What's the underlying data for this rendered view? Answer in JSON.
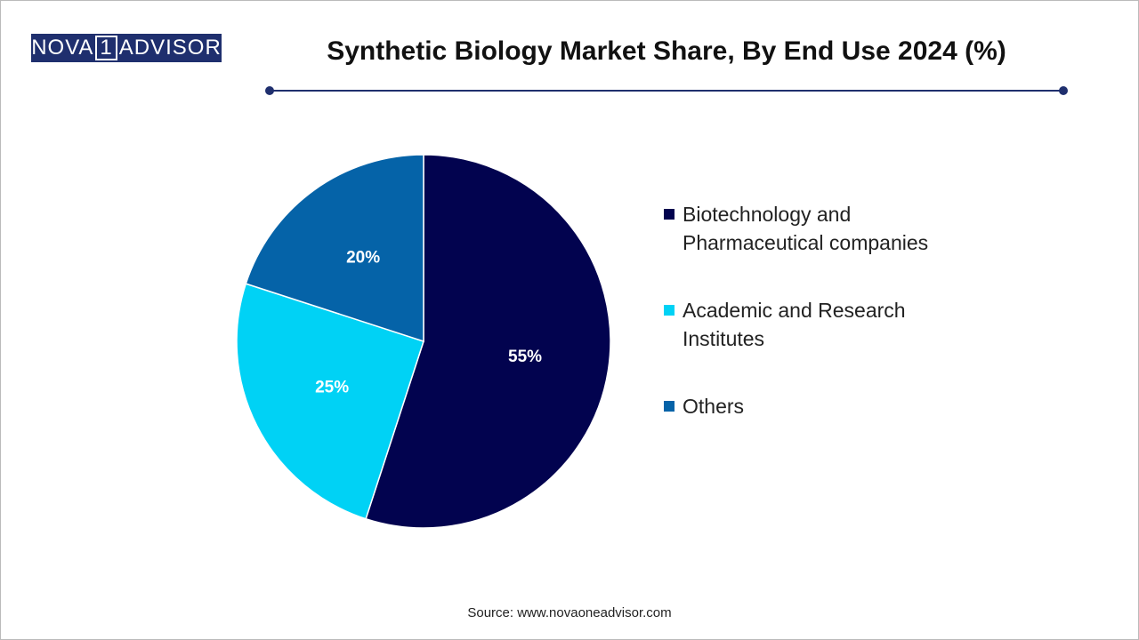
{
  "logo": {
    "left": "NOVA",
    "mark": "1",
    "right": "ADVISOR"
  },
  "chart_data": {
    "type": "pie",
    "title": "Synthetic Biology Market Share, By End Use 2024 (%)",
    "categories": [
      "Biotechnology and Pharmaceutical companies",
      "Academic and Research Institutes",
      "Others"
    ],
    "values": [
      55,
      25,
      20
    ],
    "value_labels": [
      "55%",
      "25%",
      "20%"
    ],
    "colors": [
      "#02034f",
      "#00d2f5",
      "#0563a8"
    ],
    "legend": "right",
    "source": "Source: www.novaoneadvisor.com"
  }
}
